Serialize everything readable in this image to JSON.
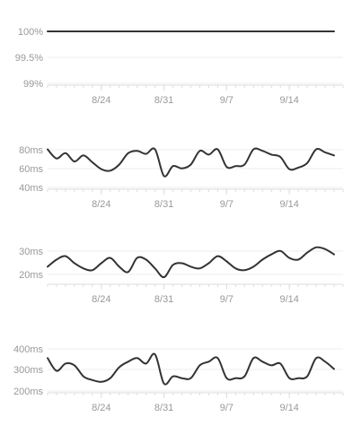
{
  "colors": {
    "line": "#333333",
    "text": "#999999",
    "grid": "#eeeeee",
    "axis": "#dddddd"
  },
  "x_tick_labels": [
    "8/24",
    "8/31",
    "9/7",
    "9/14"
  ],
  "chart_data": [
    {
      "type": "line",
      "title": "",
      "yticks": [
        "100%",
        "99.5%",
        "99%"
      ],
      "ylim": [
        99,
        100
      ],
      "x": [
        "8/18",
        "8/20",
        "8/22",
        "8/24",
        "8/26",
        "8/28",
        "8/30",
        "9/1",
        "9/3",
        "9/5",
        "9/7",
        "9/9",
        "9/11",
        "9/13",
        "9/15",
        "9/17",
        "9/19"
      ],
      "values": [
        100,
        100,
        100,
        100,
        100,
        100,
        100,
        100,
        100,
        100,
        100,
        100,
        100,
        100,
        100,
        100,
        100
      ]
    },
    {
      "type": "line",
      "title": "",
      "yticks": [
        "80ms",
        "60ms",
        "40ms"
      ],
      "ylim": [
        40,
        100
      ],
      "x": [
        "8/18",
        "8/19",
        "8/20",
        "8/21",
        "8/22",
        "8/23",
        "8/24",
        "8/25",
        "8/26",
        "8/27",
        "8/28",
        "8/29",
        "8/30",
        "8/31",
        "9/1",
        "9/2",
        "9/3",
        "9/4",
        "9/5",
        "9/6",
        "9/7",
        "9/8",
        "9/9",
        "9/10",
        "9/11",
        "9/12",
        "9/13",
        "9/14",
        "9/15",
        "9/16",
        "9/17",
        "9/18",
        "9/19"
      ],
      "values": [
        90,
        78,
        85,
        74,
        82,
        73,
        64,
        62,
        70,
        85,
        88,
        84,
        90,
        55,
        68,
        65,
        70,
        88,
        83,
        90,
        67,
        68,
        70,
        90,
        88,
        83,
        80,
        64,
        66,
        72,
        90,
        86,
        82
      ]
    },
    {
      "type": "line",
      "title": "",
      "yticks": [
        "30ms",
        "20ms"
      ],
      "ylim": [
        13,
        37
      ],
      "x": [
        "8/18",
        "8/19",
        "8/20",
        "8/21",
        "8/22",
        "8/23",
        "8/24",
        "8/25",
        "8/26",
        "8/27",
        "8/28",
        "8/29",
        "8/30",
        "8/31",
        "9/1",
        "9/2",
        "9/3",
        "9/4",
        "9/5",
        "9/6",
        "9/7",
        "9/8",
        "9/9",
        "9/10",
        "9/11",
        "9/12",
        "9/13",
        "9/14",
        "9/15",
        "9/16",
        "9/17",
        "9/18",
        "9/19"
      ],
      "values": [
        22,
        26,
        28,
        24,
        21,
        20,
        24,
        27,
        22,
        19,
        27,
        26,
        21,
        16,
        23,
        24,
        22,
        21,
        24,
        28,
        25,
        21,
        20,
        22,
        26,
        29,
        31,
        27,
        26,
        30,
        33,
        32,
        29
      ]
    },
    {
      "type": "line",
      "title": "",
      "yticks": [
        "400ms",
        "300ms",
        "200ms"
      ],
      "ylim": [
        190,
        430
      ],
      "x": [
        "8/18",
        "8/19",
        "8/20",
        "8/21",
        "8/22",
        "8/23",
        "8/24",
        "8/25",
        "8/26",
        "8/27",
        "8/28",
        "8/29",
        "8/30",
        "8/31",
        "9/1",
        "9/2",
        "9/3",
        "9/4",
        "9/5",
        "9/6",
        "9/7",
        "9/8",
        "9/9",
        "9/10",
        "9/11",
        "9/12",
        "9/13",
        "9/14",
        "9/15",
        "9/16",
        "9/17",
        "9/18",
        "9/19"
      ],
      "values": [
        370,
        300,
        340,
        330,
        270,
        250,
        240,
        260,
        320,
        350,
        370,
        340,
        390,
        230,
        270,
        260,
        260,
        330,
        350,
        370,
        260,
        260,
        270,
        370,
        350,
        330,
        340,
        260,
        260,
        270,
        370,
        350,
        310
      ]
    }
  ]
}
